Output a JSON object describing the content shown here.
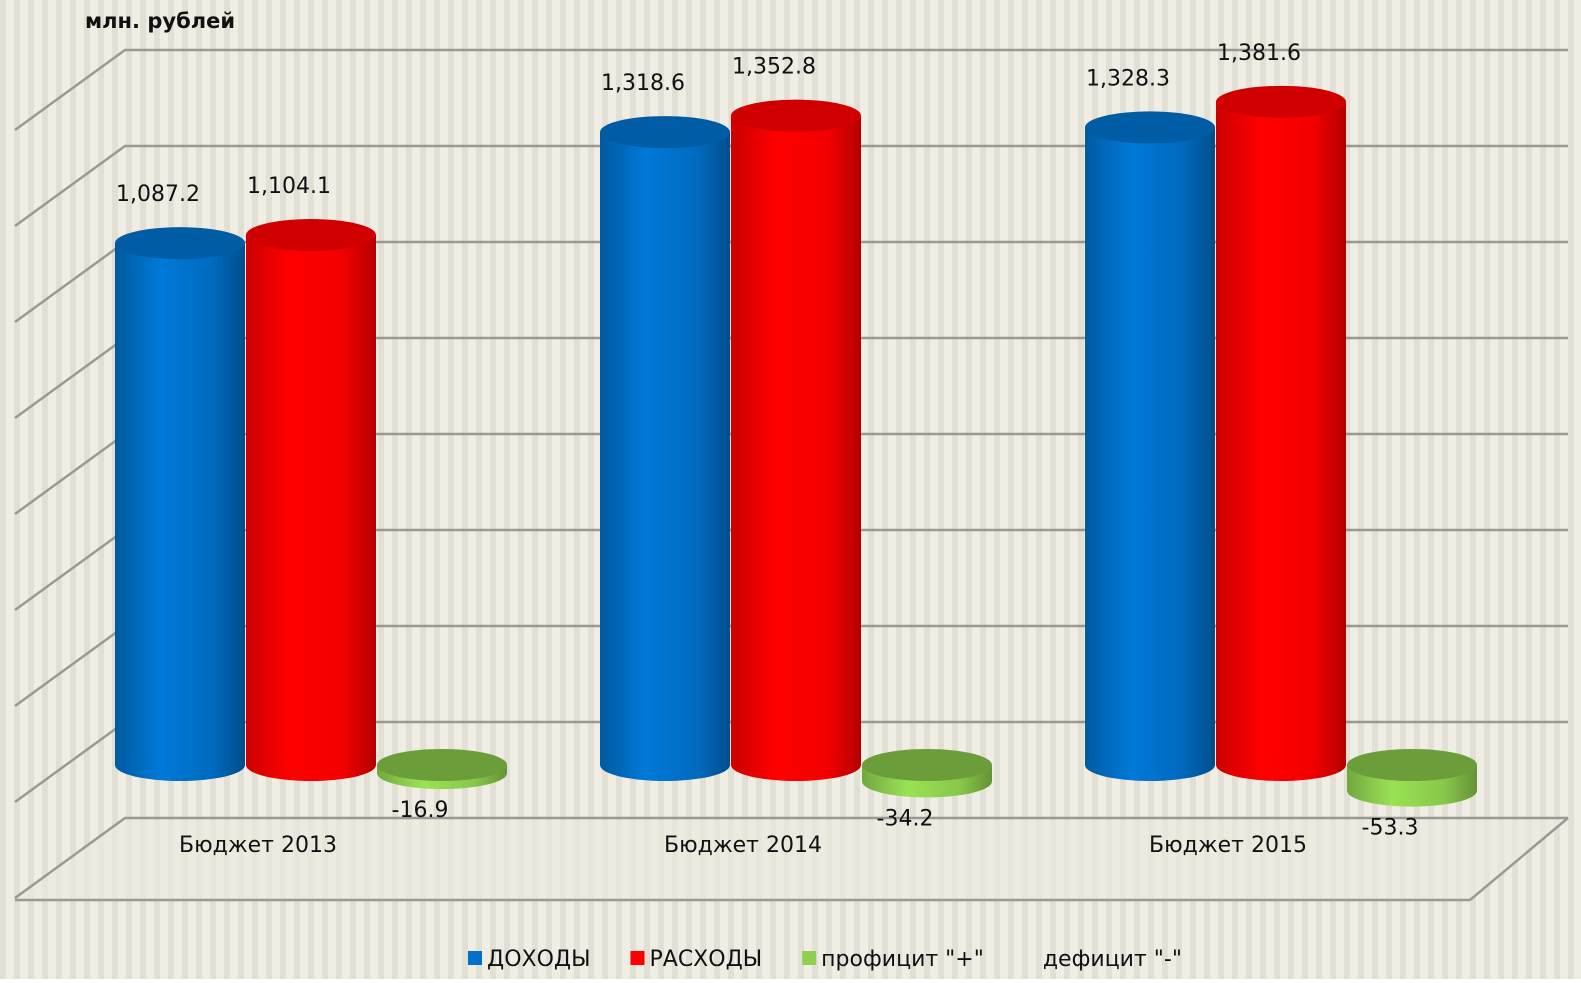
{
  "chart_data": {
    "type": "bar3d",
    "ylabel": "млн. рублей",
    "categories": [
      "Бюджет 2013",
      "Бюджет 2014",
      "Бюджет 2015"
    ],
    "series": [
      {
        "name": "ДОХОДЫ",
        "color": "#0070c8",
        "values": [
          1087.2,
          1318.6,
          1328.3
        ],
        "value_labels": [
          "1,087.2",
          "1,318.6",
          "1,328.3"
        ]
      },
      {
        "name": "РАСХОДЫ",
        "color": "#ff0000",
        "values": [
          1104.1,
          1352.8,
          1381.6
        ],
        "value_labels": [
          "1,104.1",
          "1,352.8",
          "1,381.6"
        ]
      },
      {
        "name": "профицит \"+\"",
        "color": "#8fd14f",
        "values": [
          -16.9,
          -34.2,
          -53.3
        ],
        "value_labels": [
          "-16.9",
          "-34.2",
          "-53.3"
        ]
      },
      {
        "name": "дефицит \"-\"",
        "values": [
          null,
          null,
          null
        ]
      }
    ],
    "ylim": [
      -200,
      1400
    ],
    "yticks": [
      -200,
      0,
      200,
      400,
      600,
      800,
      1000,
      1200,
      1400
    ],
    "grid": true
  }
}
